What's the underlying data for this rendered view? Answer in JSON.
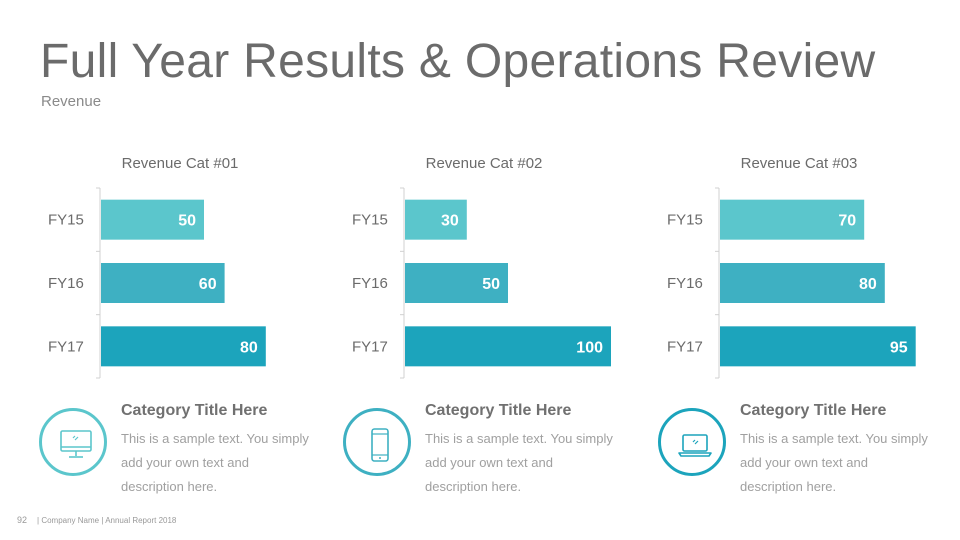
{
  "title": "Full Year Results & Operations Review",
  "subtitle": "Revenue",
  "colors": {
    "fy15": "#5bc6cc",
    "fy16": "#3eb0c2",
    "fy17": "#1ca4bc",
    "axis": "#d0d0d0"
  },
  "chart_data": [
    {
      "type": "bar",
      "title": "Revenue Cat #01",
      "categories": [
        "FY15",
        "FY16",
        "FY17"
      ],
      "values": [
        50,
        60,
        80
      ],
      "xlim": [
        0,
        100
      ]
    },
    {
      "type": "bar",
      "title": "Revenue Cat #02",
      "categories": [
        "FY15",
        "FY16",
        "FY17"
      ],
      "values": [
        30,
        50,
        100
      ],
      "xlim": [
        0,
        100
      ]
    },
    {
      "type": "bar",
      "title": "Revenue Cat #03",
      "categories": [
        "FY15",
        "FY16",
        "FY17"
      ],
      "values": [
        70,
        80,
        95
      ],
      "xlim": [
        0,
        100
      ]
    }
  ],
  "categories": [
    {
      "title": "Category Title Here",
      "desc": "This is a sample text. You simply add your own text and description here.",
      "icon": "desktop-icon",
      "color": "#5bc6cc"
    },
    {
      "title": "Category Title Here",
      "desc": "This is a sample text. You simply add your own text and description here.",
      "icon": "smartphone-icon",
      "color": "#3eb0c2"
    },
    {
      "title": "Category Title Here",
      "desc": "This is a sample text. You simply add your own text and description here.",
      "icon": "laptop-icon",
      "color": "#1ca4bc"
    }
  ],
  "footer": {
    "page": "92",
    "text": "| Company Name | Annual Report 2018"
  }
}
